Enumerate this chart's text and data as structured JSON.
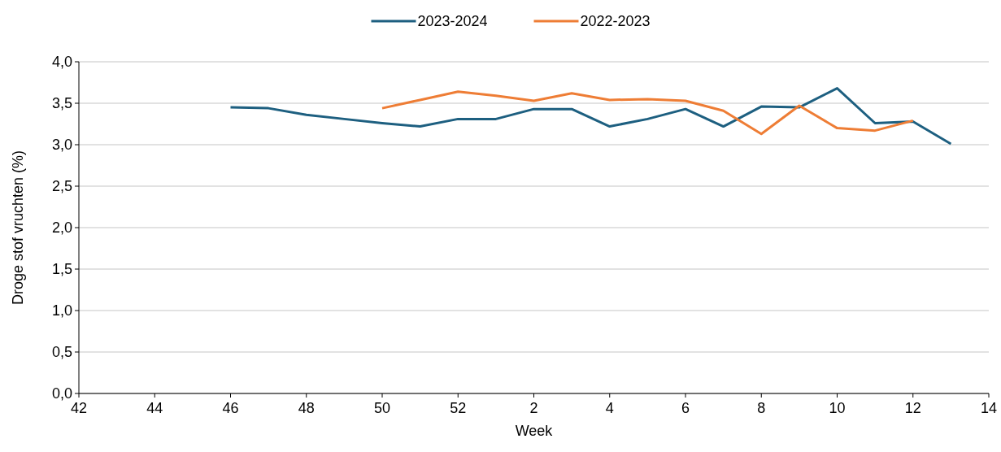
{
  "chart_data": {
    "type": "line",
    "xlabel": "Week",
    "ylabel": "Droge stof vruchten (%)",
    "categories": [
      "42",
      null,
      "44",
      null,
      "46",
      null,
      "48",
      null,
      "50",
      null,
      "52",
      null,
      "2",
      null,
      "4",
      null,
      "6",
      null,
      "8",
      null,
      "10",
      null,
      "12",
      null,
      "14"
    ],
    "series": [
      {
        "name": "2023-2024",
        "color": "#1d5f80",
        "values": [
          null,
          null,
          null,
          null,
          3.45,
          3.44,
          3.36,
          3.31,
          3.26,
          3.22,
          3.31,
          3.31,
          3.43,
          3.43,
          3.22,
          3.31,
          3.43,
          3.22,
          3.46,
          3.45,
          3.68,
          3.26,
          3.28,
          3.01,
          null
        ]
      },
      {
        "name": "2022-2023",
        "color": "#ee7d35",
        "values": [
          null,
          null,
          null,
          null,
          null,
          null,
          null,
          null,
          3.44,
          3.54,
          3.64,
          3.59,
          3.53,
          3.62,
          3.54,
          3.55,
          3.53,
          3.41,
          3.13,
          3.47,
          3.2,
          3.17,
          3.29,
          null,
          null
        ]
      }
    ],
    "ylim": [
      0,
      4
    ],
    "yticks": [
      {
        "value": 0,
        "label": "0,0"
      },
      {
        "value": 0.5,
        "label": "0,5"
      },
      {
        "value": 1,
        "label": "1,0"
      },
      {
        "value": 1.5,
        "label": "1,5"
      },
      {
        "value": 2,
        "label": "2,0"
      },
      {
        "value": 2.5,
        "label": "2,5"
      },
      {
        "value": 3,
        "label": "3,0"
      },
      {
        "value": 3.5,
        "label": "3,5"
      },
      {
        "value": 4,
        "label": "4,0"
      }
    ],
    "grid": "y",
    "legend": "top",
    "line_style": "solid",
    "marker": "none"
  }
}
